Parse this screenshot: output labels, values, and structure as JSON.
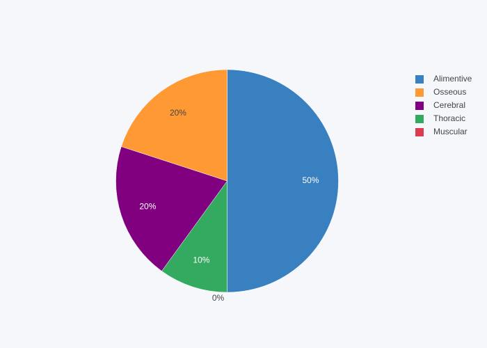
{
  "chart_data": {
    "type": "pie",
    "direction": "clockwise",
    "start_angle": "top",
    "legend_placement": "right",
    "slices": [
      {
        "label": "Alimentive",
        "value": 50,
        "text": "50%",
        "color": "#3880c0",
        "text_color": "#ffffff"
      },
      {
        "label": "Muscular",
        "value": 0,
        "text": "0%",
        "color": "#dc3c50",
        "text_color": "#444444"
      },
      {
        "label": "Thoracic",
        "value": 10,
        "text": "10%",
        "color": "#33aa5f",
        "text_color": "#ffffff"
      },
      {
        "label": "Cerebral",
        "value": 20,
        "text": "20%",
        "color": "#800080",
        "text_color": "#ffffff"
      },
      {
        "label": "Osseous",
        "value": 20,
        "text": "20%",
        "color": "#ff9933",
        "text_color": "#444444"
      }
    ],
    "legend": [
      {
        "label": "Alimentive",
        "color": "#3880c0"
      },
      {
        "label": "Osseous",
        "color": "#ff9933"
      },
      {
        "label": "Cerebral",
        "color": "#800080"
      },
      {
        "label": "Thoracic",
        "color": "#33aa5f"
      },
      {
        "label": "Muscular",
        "color": "#dc3c50"
      }
    ]
  }
}
